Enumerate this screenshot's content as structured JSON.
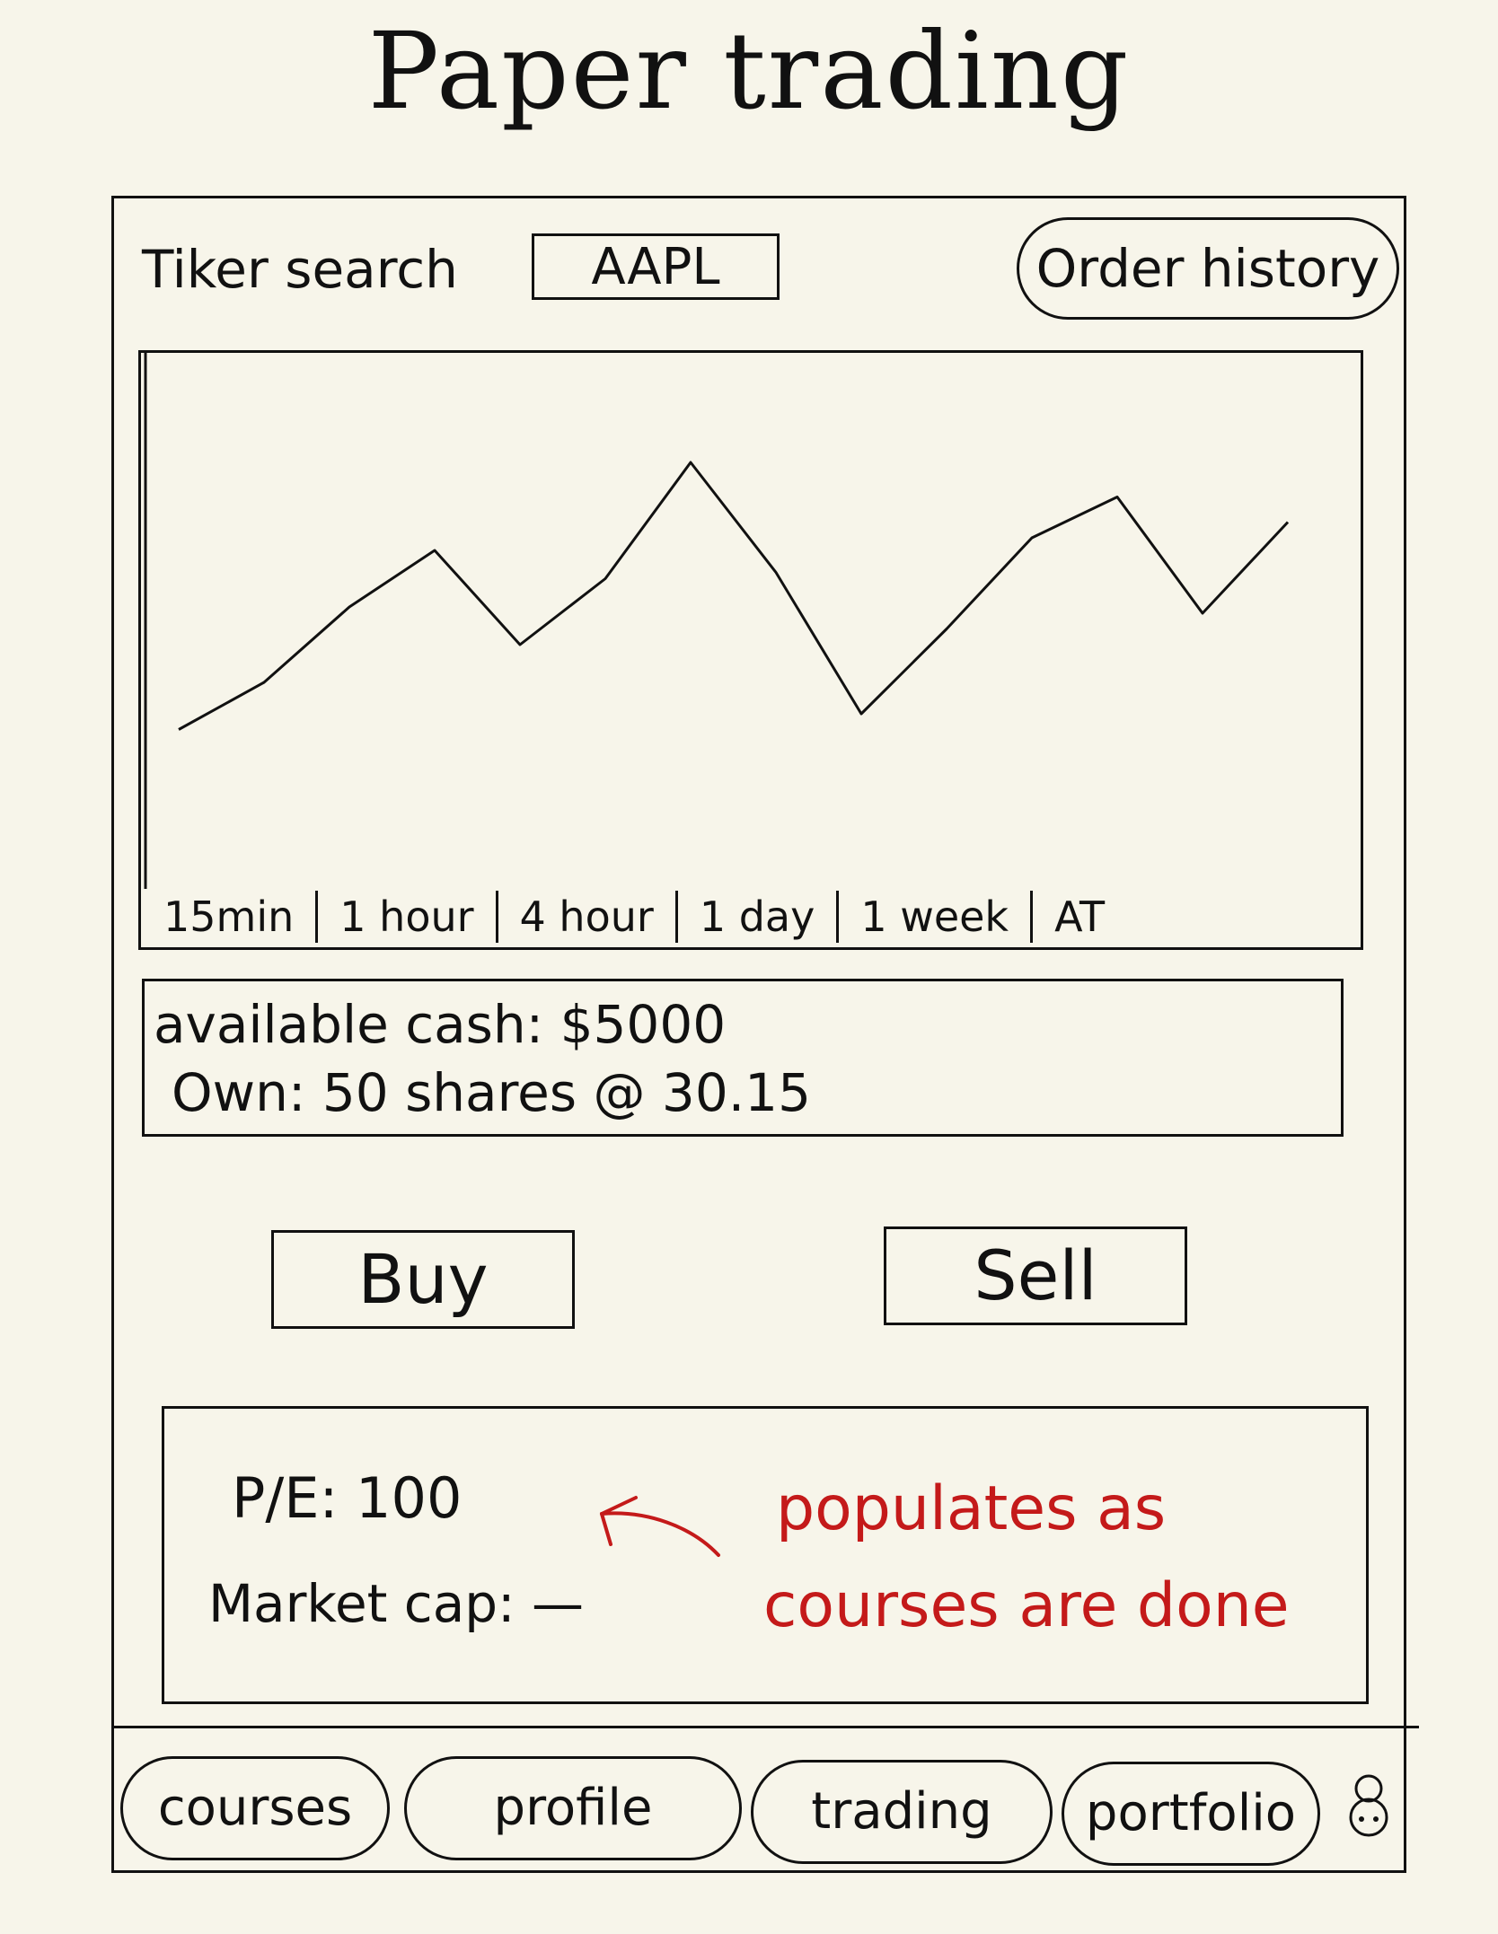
{
  "header": {
    "title": "Paper trading"
  },
  "search": {
    "label": "Tiker search",
    "value": "AAPL"
  },
  "order_history": {
    "label": "Order history"
  },
  "chart": {
    "timeframes": [
      "15min",
      "1 hour",
      "4 hour",
      "1 day",
      "1 week",
      "AT"
    ]
  },
  "chart_data": {
    "type": "line",
    "title": "",
    "xlabel": "",
    "ylabel": "",
    "series": [
      {
        "values": [
          0.05,
          0.2,
          0.44,
          0.62,
          0.32,
          0.53,
          0.9,
          0.55,
          0.1,
          0.37,
          0.66,
          0.79,
          0.42,
          0.71
        ]
      }
    ]
  },
  "account": {
    "cash": "available cash: $5000",
    "own": "Own: 50 shares @ 30.15"
  },
  "actions": {
    "buy": "Buy",
    "sell": "Sell"
  },
  "stats": {
    "pe": "P/E: 100",
    "market_cap": "Market cap: —"
  },
  "annotation": {
    "line1": "populates as",
    "line2": "courses are done"
  },
  "nav": {
    "items": [
      "courses",
      "profile",
      "trading",
      "portfolio"
    ],
    "avatar_icon": "avatar-icon"
  }
}
